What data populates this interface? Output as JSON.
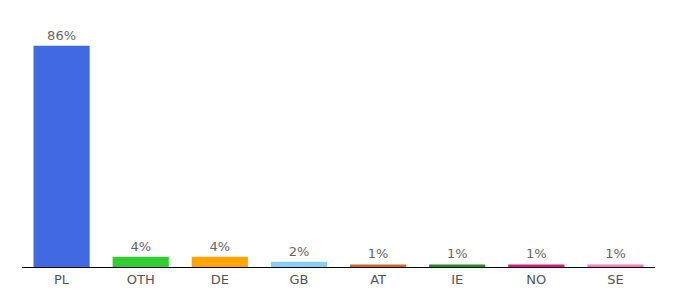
{
  "chart_data": {
    "type": "bar",
    "categories": [
      "PL",
      "OTH",
      "DE",
      "GB",
      "AT",
      "IE",
      "NO",
      "SE"
    ],
    "values": [
      86,
      4,
      4,
      2,
      1,
      1,
      1,
      1
    ],
    "value_labels": [
      "86%",
      "4%",
      "4%",
      "2%",
      "1%",
      "1%",
      "1%",
      "1%"
    ],
    "colors": [
      "#4169e1",
      "#32cd32",
      "#ffa500",
      "#87cefa",
      "#d2691e",
      "#228b22",
      "#d81b7f",
      "#f07cc4"
    ],
    "ylim": [
      0,
      96
    ],
    "grid": false,
    "data_labels": true,
    "tick_labels": "x"
  }
}
